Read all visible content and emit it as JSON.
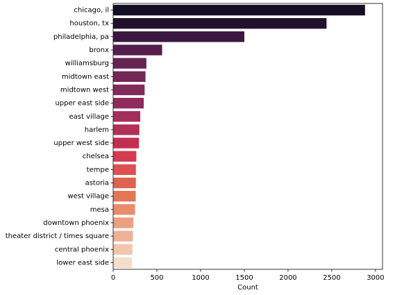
{
  "chart_data": {
    "type": "bar",
    "orientation": "horizontal",
    "xlabel": "Count",
    "ylabel": "",
    "xlim": [
      0,
      3080
    ],
    "xticks": [
      0,
      500,
      1000,
      1500,
      2000,
      2500,
      3000
    ],
    "grid": false,
    "categories": [
      "chicago, il",
      "houston, tx",
      "philadelphia, pa",
      "bronx",
      "williamsburg",
      "midtown east",
      "midtown west",
      "upper east side",
      "east village",
      "harlem",
      "upper west side",
      "chelsea",
      "tempe",
      "astoria",
      "west village",
      "mesa",
      "downtown phoenix",
      "theater district / times square",
      "central phoenix",
      "lower east side"
    ],
    "values": [
      2880,
      2440,
      1500,
      560,
      380,
      370,
      360,
      350,
      310,
      300,
      295,
      265,
      260,
      260,
      258,
      250,
      230,
      225,
      220,
      215
    ],
    "colors": [
      "#140e22",
      "#21112c",
      "#3a1841",
      "#561e4c",
      "#662453",
      "#742757",
      "#812a5a",
      "#8f2c5d",
      "#a32e5c",
      "#b22f58",
      "#c3304f",
      "#d23c4e",
      "#dc5051",
      "#e06350",
      "#e37657",
      "#e88c69",
      "#eca07f",
      "#eeb195",
      "#f1c6ae",
      "#f5dccb"
    ]
  }
}
